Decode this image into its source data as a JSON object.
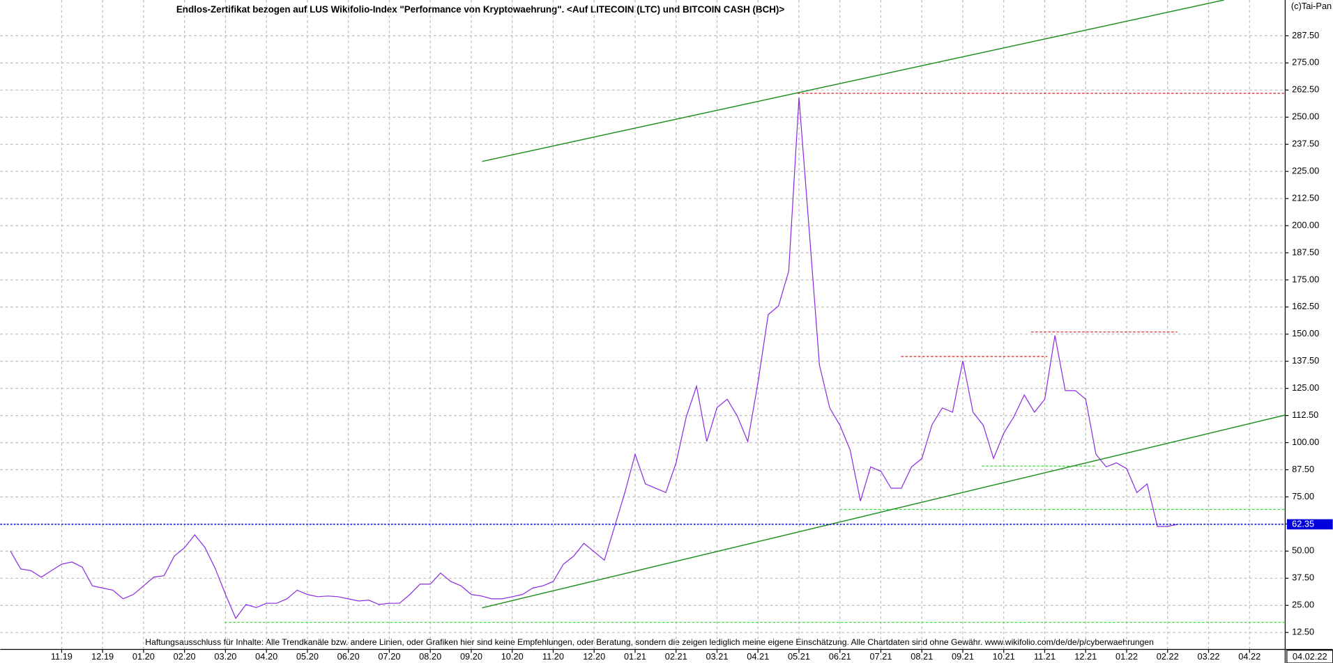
{
  "chart_data": {
    "type": "line",
    "title": "Endlos-Zertifikat bezogen auf LUS Wikifolio-Index \"Performance von Kryptowaehrung\". <Auf LITECOIN (LTC) und BITCOIN CASH (BCH)>",
    "copyright": "(c)Tai-Pan",
    "disclaimer": "Haftungsausschluss für Inhalte: Alle Trendkanäle bzw. andere Linien, oder Grafiken hier sind keine Empfehlungen, oder Beratung, sondern die zeigen lediglich meine eigene Einschätzung. Alle Chartdaten sind ohne Gewähr.  www.wikifolio.com/de/de/p/cyberwaehrungen",
    "last_date": "04.02.22",
    "color": "#8a2be2",
    "categories": [
      null,
      null,
      null,
      null,
      null,
      "11.19",
      null,
      null,
      null,
      "12.19",
      null,
      null,
      null,
      "01.20",
      null,
      null,
      null,
      "02.20",
      null,
      null,
      null,
      "03.20",
      null,
      null,
      null,
      "04.20",
      null,
      null,
      null,
      "05.20",
      null,
      null,
      null,
      "06.20",
      null,
      null,
      null,
      "07.20",
      null,
      null,
      null,
      "08.20",
      null,
      null,
      null,
      "09.20",
      null,
      null,
      null,
      "10.20",
      null,
      null,
      null,
      "11.20",
      null,
      null,
      null,
      "12.20",
      null,
      null,
      null,
      "01.21",
      null,
      null,
      null,
      "02.21",
      null,
      null,
      null,
      "03.21",
      null,
      null,
      null,
      "04.21",
      null,
      null,
      null,
      "05.21",
      null,
      null,
      null,
      "06.21",
      null,
      null,
      null,
      "07.21",
      null,
      null,
      null,
      "08.21",
      null,
      null,
      null,
      "09.21",
      null,
      null,
      null,
      "10.21",
      null,
      null,
      null,
      "11.21",
      null,
      null,
      null,
      "12.21",
      null,
      null,
      null,
      "01.22",
      null,
      null,
      null,
      "02.22",
      null,
      null,
      null,
      "03.22",
      null,
      null,
      null,
      "04.22",
      null,
      null,
      null
    ],
    "values": [
      50,
      41.8,
      41,
      38,
      41,
      44,
      45,
      42.6,
      34,
      33,
      32,
      28,
      30,
      34,
      38,
      38.7,
      47.7,
      51.6,
      57.5,
      51.6,
      42,
      30,
      19,
      25.4,
      24,
      26,
      26,
      28,
      32,
      30,
      29,
      29.3,
      29,
      28,
      27,
      27.4,
      25.4,
      26,
      26,
      30,
      34.8,
      34.8,
      39.9,
      36,
      34,
      30,
      29.3,
      28,
      28,
      29,
      30,
      33,
      34,
      36,
      44,
      47.7,
      53.6,
      49.7,
      45.8,
      61.4,
      77,
      94.6,
      81,
      79,
      77,
      90.7,
      112,
      126,
      100.5,
      116.2,
      120,
      112,
      100.5,
      127.9,
      159,
      163,
      179,
      259,
      198,
      135.7,
      116,
      108,
      96.6,
      73.1,
      88.8,
      86.8,
      79,
      79,
      88.8,
      92.7,
      108.3,
      116,
      114,
      137.7,
      114,
      108,
      92.7,
      104.4,
      112,
      122,
      114,
      120,
      149.4,
      124,
      124,
      120,
      94.7,
      88.8,
      90.7,
      88,
      77,
      81,
      61.4,
      61.4,
      62.35,
      null,
      null,
      null,
      null,
      null,
      null,
      null,
      null,
      null,
      null
    ],
    "ylim": [
      4.7,
      304
    ],
    "yticks": [
      {
        "value": 12.5,
        "label": "12.50"
      },
      {
        "value": 25,
        "label": "25.00"
      },
      {
        "value": 37.5,
        "label": "37.50"
      },
      {
        "value": 50,
        "label": "50.00"
      },
      {
        "value": 62.5,
        "label": "62.50"
      },
      {
        "value": 75,
        "label": "75.00"
      },
      {
        "value": 87.5,
        "label": "87.50"
      },
      {
        "value": 100,
        "label": "100.00"
      },
      {
        "value": 112.5,
        "label": "112.50"
      },
      {
        "value": 125,
        "label": "125.00"
      },
      {
        "value": 137.5,
        "label": "137.50"
      },
      {
        "value": 150,
        "label": "150.00"
      },
      {
        "value": 162.5,
        "label": "162.50"
      },
      {
        "value": 175,
        "label": "175.00"
      },
      {
        "value": 187.5,
        "label": "187.50"
      },
      {
        "value": 200,
        "label": "200.00"
      },
      {
        "value": 212.5,
        "label": "212.50"
      },
      {
        "value": 225,
        "label": "225.00"
      },
      {
        "value": 237.5,
        "label": "237.50"
      },
      {
        "value": 250,
        "label": "250.00"
      },
      {
        "value": 262.5,
        "label": "262.50"
      },
      {
        "value": 275,
        "label": "275.00"
      },
      {
        "value": 287.5,
        "label": "287.50"
      }
    ],
    "grid": true,
    "trend_lines": [
      {
        "color": "#1f8f1f",
        "y": [
          229.6,
          304
        ]
      },
      {
        "color": "#1f8f1f",
        "y": [
          23.85,
          112.7
        ]
      }
    ],
    "levels": [
      {
        "value": 261,
        "color": "#e02020"
      },
      {
        "value": 139.7,
        "color": "#e02020"
      },
      {
        "value": 151,
        "color": "#e02020"
      },
      {
        "value": 89.2,
        "color": "#33dd33"
      },
      {
        "value": 69.2,
        "color": "#33dd33"
      },
      {
        "value": 17.2,
        "color": "#33dd33"
      }
    ],
    "current_color": "#0000dd"
  }
}
